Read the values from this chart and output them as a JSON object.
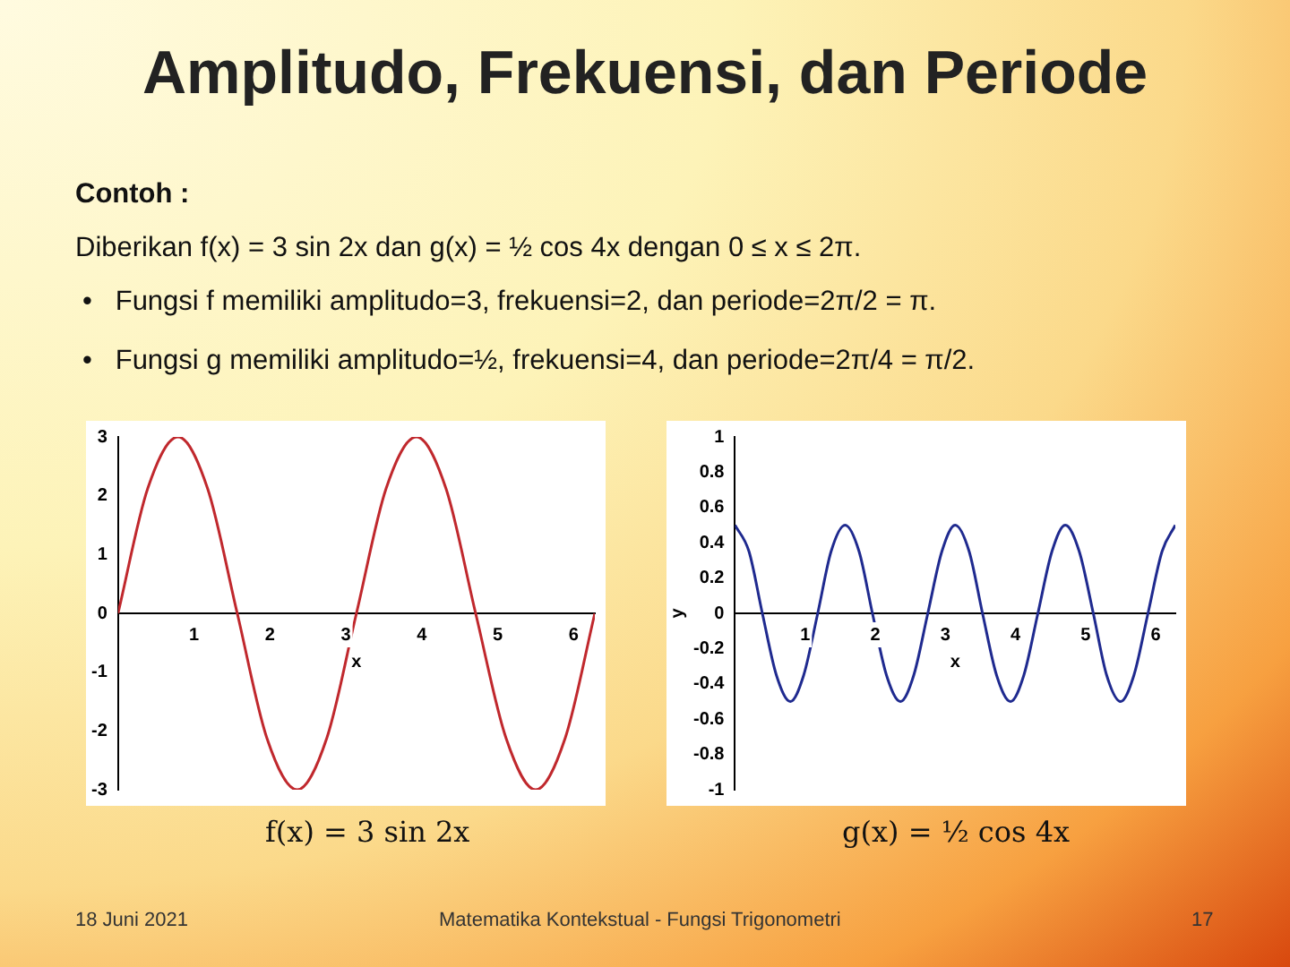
{
  "chart_data": [
    {
      "type": "other",
      "title": "Amplitudo, Frekuensi, dan Periode",
      "annotations": [
        "Contoh :",
        "Diberikan f(x) = 3 sin 2x dan g(x) = ½ cos 4x dengan 0 ≤ x ≤ 2π.",
        "•   Fungsi f memiliki amplitudo=3, frekuensi=2, dan periode=2π/2 = π.",
        "•   Fungsi g memiliki amplitudo=½, frekuensi=4, dan periode=2π/4 = π/2.",
        "18 Juni 2021",
        "Matematika Kontekstual - Fungsi Trigonometri",
        "17"
      ]
    },
    {
      "type": "line",
      "title": "f(x) = 3 sin 2x",
      "xlabel": "x",
      "color": "#c0282d",
      "xlim": [
        0,
        6.28
      ],
      "ylim": [
        -3,
        3
      ],
      "xticks": [
        1,
        2,
        3,
        4,
        5,
        6
      ],
      "yticks": [
        -3,
        -2,
        -1,
        0,
        1,
        2,
        3
      ],
      "grid": false,
      "legend": false,
      "x": [
        0,
        0.39,
        0.79,
        1.18,
        1.57,
        1.96,
        2.36,
        2.75,
        3.14,
        3.53,
        3.93,
        4.32,
        4.71,
        5.11,
        5.5,
        5.89,
        6.28
      ],
      "values": [
        0,
        2.12,
        3,
        2.12,
        0,
        -2.12,
        -3,
        -2.12,
        0,
        2.12,
        3,
        2.12,
        0,
        -2.12,
        -3,
        -2.12,
        0
      ]
    },
    {
      "type": "line",
      "title": "g(x) = ½ cos 4x",
      "xlabel": "x",
      "ylabel": "y",
      "color": "#1f2a8f",
      "xlim": [
        0,
        6.28
      ],
      "ylim": [
        -1,
        1
      ],
      "xticks": [
        1,
        2,
        3,
        4,
        5,
        6
      ],
      "yticks": [
        -1,
        -0.8,
        -0.6,
        -0.4,
        -0.2,
        0,
        0.2,
        0.4,
        0.6,
        0.8,
        1
      ],
      "grid": false,
      "legend": false,
      "x": [
        0,
        0.2,
        0.39,
        0.59,
        0.79,
        0.98,
        1.18,
        1.37,
        1.57,
        1.77,
        1.96,
        2.16,
        2.36,
        2.55,
        2.75,
        2.95,
        3.14,
        3.34,
        3.53,
        3.73,
        3.93,
        4.12,
        4.32,
        4.52,
        4.71,
        4.91,
        5.11,
        5.3,
        5.5,
        5.69,
        5.89,
        6.09,
        6.28
      ],
      "values": [
        0.5,
        0.35,
        0,
        -0.35,
        -0.5,
        -0.35,
        0,
        0.35,
        0.5,
        0.35,
        0,
        -0.35,
        -0.5,
        -0.35,
        0,
        0.35,
        0.5,
        0.35,
        0,
        -0.35,
        -0.5,
        -0.35,
        0,
        0.35,
        0.5,
        0.35,
        0,
        -0.35,
        -0.5,
        -0.35,
        0,
        0.35,
        0.5
      ]
    }
  ]
}
